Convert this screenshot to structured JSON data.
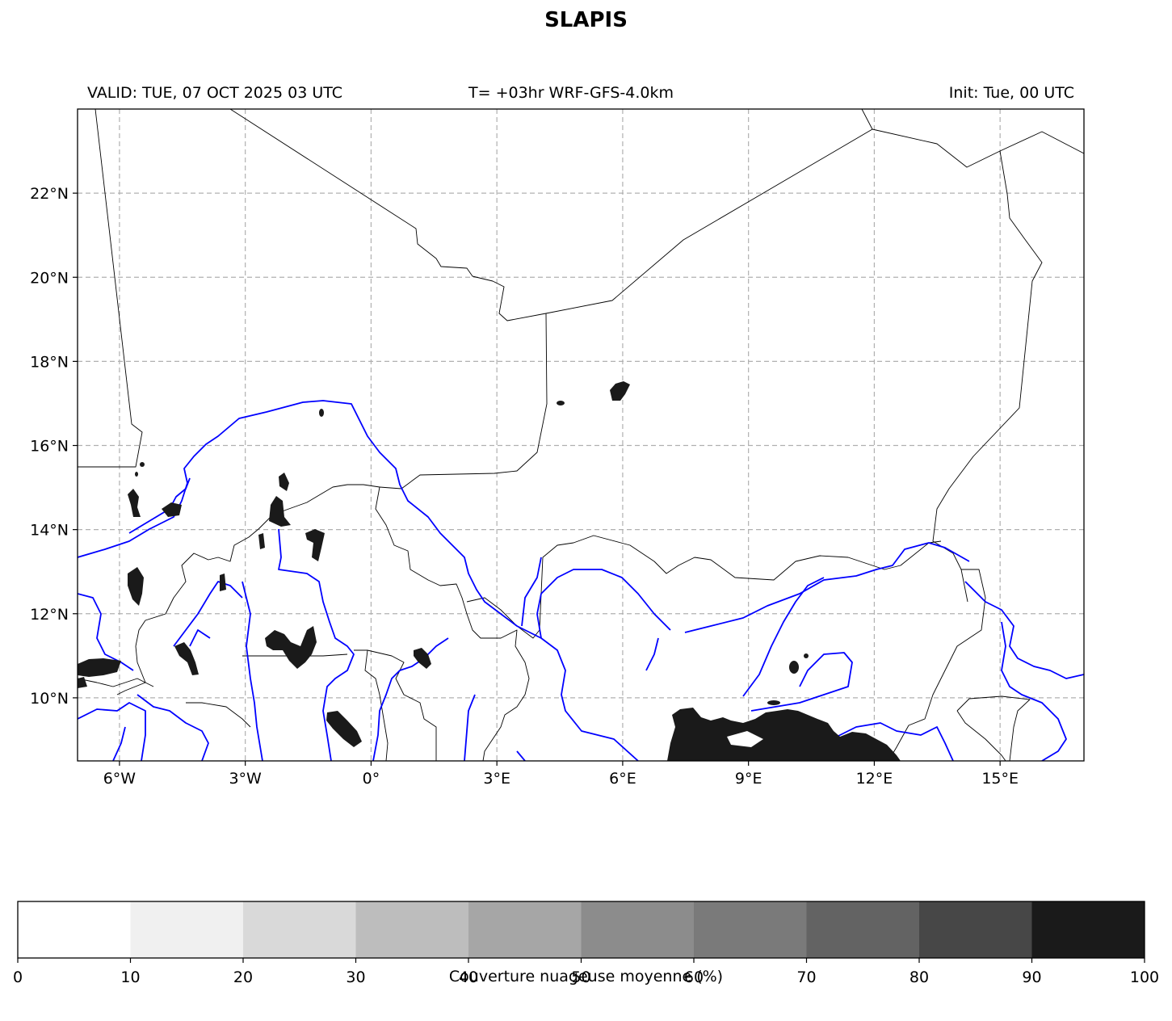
{
  "title": "SLAPIS",
  "subtitle": {
    "valid": "VALID: TUE, 07 OCT 2025 03 UTC",
    "model": "T= +03hr WRF-GFS-4.0km",
    "init": "Init: Tue, 00 UTC"
  },
  "map": {
    "lon_range": [
      -7,
      17
    ],
    "lat_range": [
      8.5,
      24
    ],
    "lon_ticks": [
      {
        "value": -6,
        "label": "6°W"
      },
      {
        "value": -3,
        "label": "3°W"
      },
      {
        "value": 0,
        "label": "0°"
      },
      {
        "value": 3,
        "label": "3°E"
      },
      {
        "value": 6,
        "label": "6°E"
      },
      {
        "value": 9,
        "label": "9°E"
      },
      {
        "value": 12,
        "label": "12°E"
      },
      {
        "value": 15,
        "label": "15°E"
      }
    ],
    "lat_ticks": [
      {
        "value": 22,
        "label": "22°N"
      },
      {
        "value": 20,
        "label": "20°N"
      },
      {
        "value": 18,
        "label": "18°N"
      },
      {
        "value": 16,
        "label": "16°N"
      },
      {
        "value": 14,
        "label": "14°N"
      },
      {
        "value": 12,
        "label": "12°N"
      },
      {
        "value": 10,
        "label": "10°N"
      }
    ],
    "gridlines": true,
    "colors": {
      "border": "#000000",
      "river": "#0000ff",
      "grid": "#b0b0b0",
      "cloud": "#1a1a1a"
    }
  },
  "colorbar": {
    "label": "Couverture nuageuse moyenne (%)",
    "ticks": [
      "0",
      "10",
      "20",
      "30",
      "40",
      "50",
      "60",
      "70",
      "80",
      "90",
      "100"
    ],
    "colors": [
      "#ffffff",
      "#f0f0f0",
      "#d9d9d9",
      "#bdbdbd",
      "#a6a6a6",
      "#8c8c8c",
      "#7a7a7a",
      "#636363",
      "#474747",
      "#1a1a1a"
    ]
  }
}
